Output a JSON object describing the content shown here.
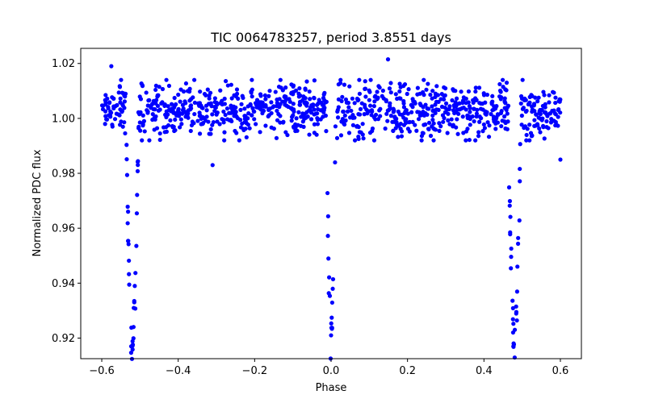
{
  "chart_data": {
    "type": "scatter",
    "title": "TIC 0064783257, period 3.8551 days",
    "xlabel": "Phase",
    "ylabel": "Normalized PDC flux",
    "xlim": [
      -0.655,
      0.655
    ],
    "ylim": [
      0.9125,
      1.0255
    ],
    "xticks": [
      -0.6,
      -0.4,
      -0.2,
      0.0,
      0.2,
      0.4,
      0.6
    ],
    "xtick_labels": [
      "−0.6",
      "−0.4",
      "−0.2",
      "0.0",
      "0.2",
      "0.4",
      "0.6"
    ],
    "yticks": [
      0.92,
      0.94,
      0.96,
      0.98,
      1.0,
      1.02
    ],
    "ytick_labels": [
      "0.92",
      "0.94",
      "0.96",
      "0.98",
      "1.00",
      "1.02"
    ],
    "grid": false,
    "marker_color": "#0000ff",
    "series": [
      {
        "name": "flux",
        "description": "approximately 1100 phase-folded flux points over phase -0.6 to 0.6, baseline ~1.003 with scatter ~0.005",
        "baseline": 1.003,
        "scatter": 0.005,
        "eclipses": [
          {
            "center_phase": -0.52,
            "half_width": 0.017,
            "min_flux": 0.917
          },
          {
            "center_phase": 0.0,
            "half_width": 0.012,
            "min_flux": 0.921
          },
          {
            "center_phase": 0.48,
            "half_width": 0.017,
            "min_flux": 0.917
          }
        ],
        "phase_range": [
          -0.6,
          0.6
        ],
        "n_points": 1100
      }
    ],
    "highlighted_points": [
      {
        "x": -0.575,
        "y": 1.019
      },
      {
        "x": 0.149,
        "y": 1.0215
      },
      {
        "x": -0.523,
        "y": 0.917
      },
      {
        "x": 0.477,
        "y": 0.917
      },
      {
        "x": 0.0,
        "y": 0.921
      },
      {
        "x": -0.31,
        "y": 0.983
      },
      {
        "x": 0.6,
        "y": 0.985
      }
    ]
  }
}
